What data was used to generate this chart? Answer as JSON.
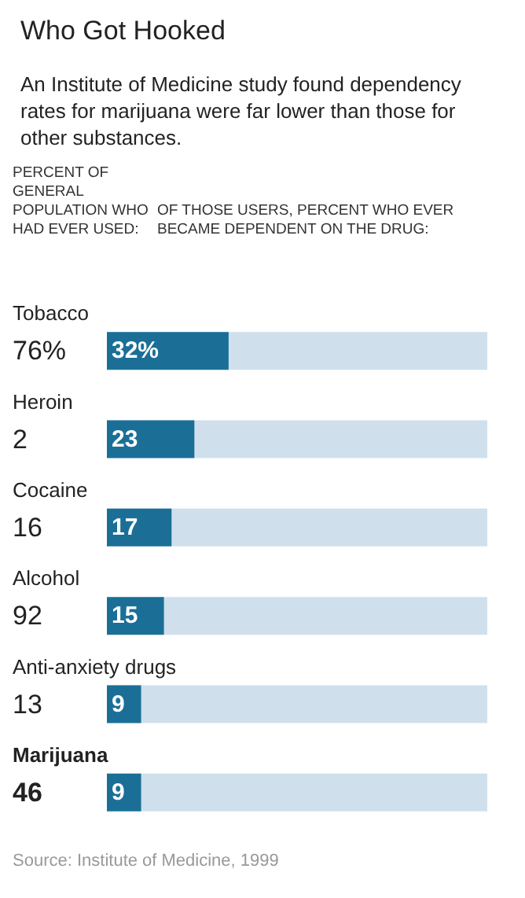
{
  "chart_data": {
    "type": "bar",
    "orientation": "horizontal",
    "title": "Who Got Hooked",
    "subtitle": "An Institute of Medicine study found dependency rates for marijuana were far lower than those for other substances.",
    "ylabel": "PERCENT OF GENERAL POPULATION WHO HAD EVER USED:",
    "xlabel": "OF THOSE USERS, PERCENT WHO EVER BECAME DEPENDENT ON THE DRUG:",
    "categories": [
      "Tobacco\n76%",
      "Heroin\n2",
      "Cocaine\n16",
      "Alcohol\n92",
      "Anti-anxiety drugs\n13",
      "Marijuana\n46"
    ],
    "values": [
      32,
      23,
      17,
      15,
      9,
      9
    ],
    "color": "#1b6f97",
    "value_labels": [
      "32%",
      "23",
      "17",
      "15",
      "9",
      "9"
    ],
    "xlim": [
      0,
      100
    ],
    "tick_labels": "y",
    "annotations": [
      "Source: Institute of Medicine, 1999"
    ]
  }
}
